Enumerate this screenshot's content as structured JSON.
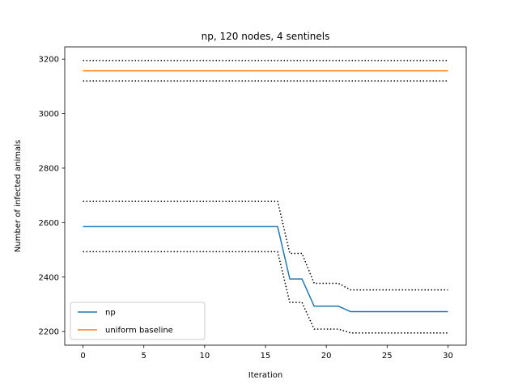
{
  "chart_data": {
    "type": "line",
    "title": "np, 120 nodes, 4 sentinels",
    "xlabel": "Iteration",
    "ylabel": "Number of infected animals",
    "xlim": [
      -1.5,
      31.5
    ],
    "ylim": [
      2150,
      3245
    ],
    "xticks": [
      0,
      5,
      10,
      15,
      20,
      25,
      30
    ],
    "yticks": [
      2200,
      2400,
      2600,
      2800,
      3000,
      3200
    ],
    "grid": false,
    "legend_position": "lower left",
    "series": [
      {
        "name": "np",
        "color": "#1f77b4",
        "style": "solid",
        "x": [
          0,
          16,
          17,
          18,
          19,
          21,
          22,
          30
        ],
        "y": [
          2585,
          2585,
          2393,
          2393,
          2293,
          2293,
          2273,
          2273
        ]
      },
      {
        "name": "uniform baseline",
        "color": "#ff7f0e",
        "style": "solid",
        "x": [
          0,
          30
        ],
        "y": [
          3157,
          3157
        ]
      },
      {
        "color": "#000000",
        "style": "dotted",
        "x": [
          0,
          16,
          17,
          18,
          19,
          21,
          22,
          30
        ],
        "y": [
          2678,
          2678,
          2487,
          2487,
          2377,
          2377,
          2353,
          2353
        ]
      },
      {
        "color": "#000000",
        "style": "dotted",
        "x": [
          0,
          16,
          17,
          18,
          19,
          21,
          22,
          30
        ],
        "y": [
          2493,
          2493,
          2307,
          2307,
          2209,
          2209,
          2195,
          2195
        ]
      },
      {
        "color": "#000000",
        "style": "dotted",
        "x": [
          0,
          30
        ],
        "y": [
          3195,
          3195
        ]
      },
      {
        "color": "#000000",
        "style": "dotted",
        "x": [
          0,
          30
        ],
        "y": [
          3120,
          3120
        ]
      }
    ]
  }
}
